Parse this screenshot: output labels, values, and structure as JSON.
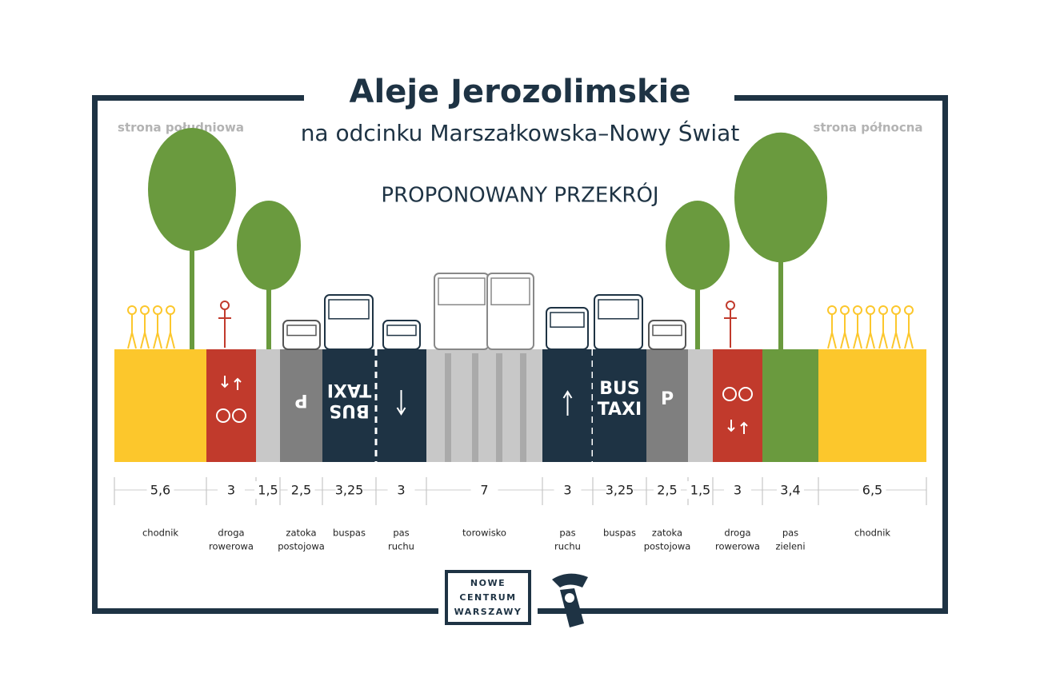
{
  "header": {
    "title": "Aleje Jerozolimskie",
    "subtitle": "na odcinku Marszałkowska–Nowy Świat",
    "south_label": "strona południowa",
    "north_label": "strona północna",
    "section_title": "PROPONOWANY PRZEKRÓJ"
  },
  "segments": [
    {
      "width": "5,6",
      "name": [
        "chodnik"
      ]
    },
    {
      "width": "3",
      "name": [
        "droga",
        "rowerowa"
      ]
    },
    {
      "width": "1,5"
    },
    {
      "width": "2,5",
      "name": [
        "zatoka",
        "postojowa"
      ],
      "marking": [
        "P"
      ]
    },
    {
      "width": "3,25",
      "name": [
        "buspas"
      ],
      "marking": [
        "BUS",
        "TAXI"
      ]
    },
    {
      "width": "3",
      "name": [
        "pas",
        "ruchu"
      ]
    },
    {
      "width": "7",
      "name": [
        "torowisko"
      ]
    },
    {
      "width": "3",
      "name": [
        "pas",
        "ruchu"
      ]
    },
    {
      "width": "3,25",
      "name": [
        "buspas"
      ],
      "marking": [
        "BUS",
        "TAXI"
      ]
    },
    {
      "width": "2,5",
      "name": [
        "zatoka",
        "postojowa"
      ],
      "marking": [
        "P"
      ]
    },
    {
      "width": "1,5"
    },
    {
      "width": "3",
      "name": [
        "droga",
        "rowerowa"
      ]
    },
    {
      "width": "3,4",
      "name": [
        "pas",
        "zieleni"
      ]
    },
    {
      "width": "6,5",
      "name": [
        "chodnik"
      ]
    }
  ],
  "logo": {
    "lines": [
      "NOWE",
      "CENTRUM",
      "WARSZAWY"
    ]
  }
}
